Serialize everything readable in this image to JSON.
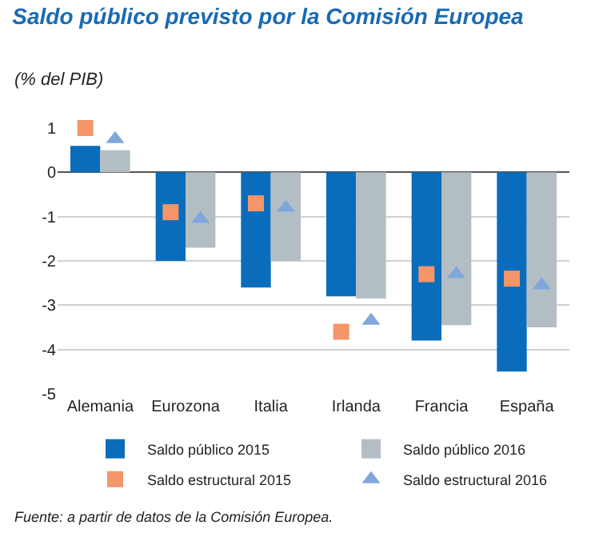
{
  "chart_data": {
    "type": "bar",
    "title": "Saldo público previsto por la Comisión Europea",
    "subtitle": "(% del PIB)",
    "categories": [
      "Alemania",
      "Eurozona",
      "Italia",
      "Irlanda",
      "Francia",
      "España"
    ],
    "series": [
      {
        "name": "Saldo público 2015",
        "color": "#0a6dbb",
        "values": [
          0.6,
          -2.0,
          -2.6,
          -2.8,
          -3.8,
          -4.5
        ]
      },
      {
        "name": "Saldo público 2016",
        "color": "#b3bec4",
        "values": [
          0.5,
          -1.7,
          -2.0,
          -2.85,
          -3.45,
          -3.5
        ]
      },
      {
        "name": "Saldo estructural 2015",
        "type": "scatter",
        "marker": "square",
        "color": "#f4956a",
        "values": [
          1.0,
          -0.9,
          -0.7,
          -3.6,
          -2.3,
          -2.4
        ]
      },
      {
        "name": "Saldo estructural 2016",
        "type": "scatter",
        "marker": "triangle",
        "color": "#7fa7dc",
        "values": [
          0.75,
          -1.05,
          -0.8,
          -3.35,
          -2.3,
          -2.55
        ]
      }
    ],
    "ylim": [
      -5,
      1
    ],
    "yticks": [
      -5,
      -4,
      -3,
      -2,
      -1,
      0,
      1
    ],
    "grid": "y",
    "legend": "bottom",
    "annotations": [
      "Fuente: a partir de datos de la Comisión Europea."
    ]
  }
}
